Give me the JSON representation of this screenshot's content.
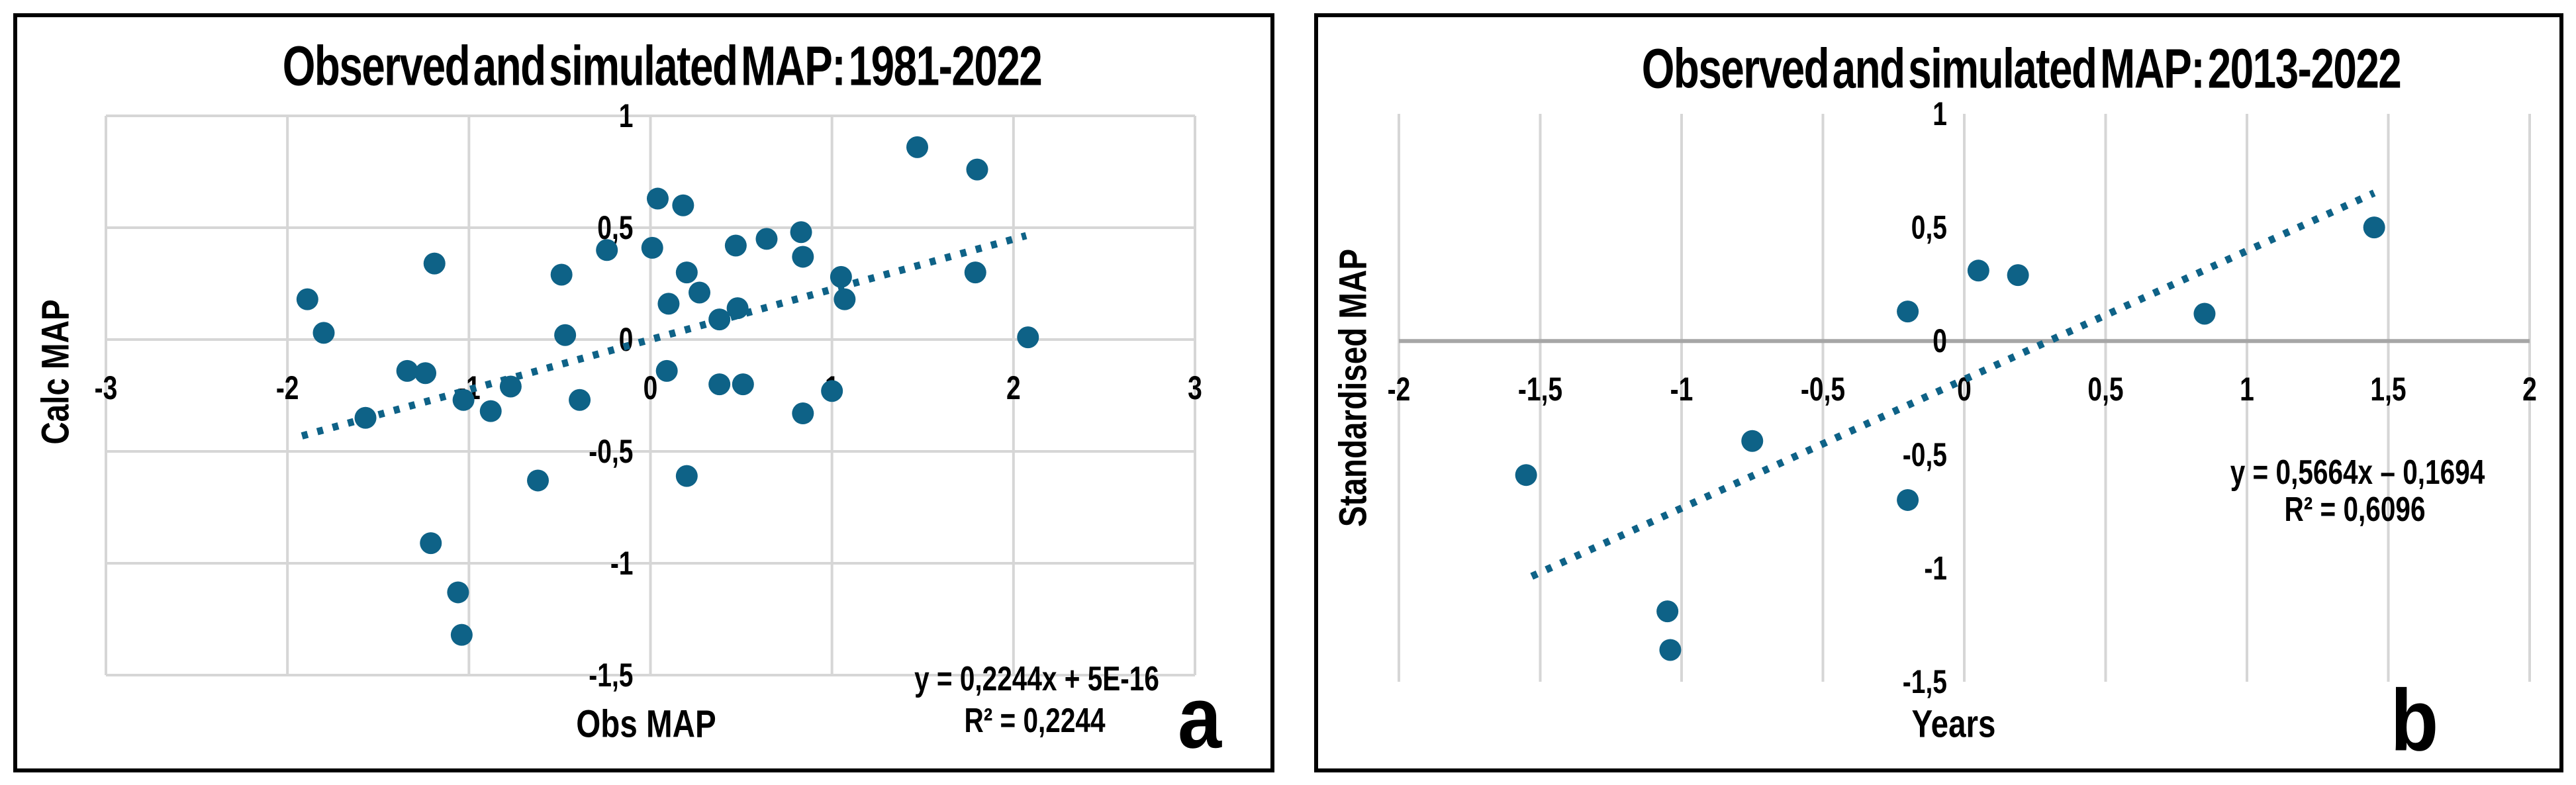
{
  "figure": {
    "background": "#FFFFFF",
    "panel_count": 2
  },
  "colors": {
    "point": "#0E6287",
    "trendline": "#0E6287",
    "gridline": "#D6D6D6",
    "zero_axis": "#A6A6A6",
    "text": "#000000",
    "panel_border": "#000000"
  },
  "chart_data": [
    {
      "id": "a",
      "type": "scatter",
      "title": "Observed and simulated MAP: 1981-2022",
      "xlabel": "Obs MAP",
      "ylabel": "Calc MAP",
      "corner_label": "a",
      "xlim": [
        -3,
        3
      ],
      "ylim": [
        -1.5,
        1
      ],
      "grid": "both",
      "zero_axis": false,
      "legend": "none",
      "x_ticks": [
        {
          "v": -3,
          "label": "-3"
        },
        {
          "v": -2,
          "label": "-2"
        },
        {
          "v": -1,
          "label": "-1"
        },
        {
          "v": 0,
          "label": "0"
        },
        {
          "v": 1,
          "label": "1"
        },
        {
          "v": 2,
          "label": "2"
        },
        {
          "v": 3,
          "label": "3"
        }
      ],
      "y_ticks": [
        {
          "v": 1,
          "label": "1"
        },
        {
          "v": 0.5,
          "label": "0,5"
        },
        {
          "v": 0,
          "label": "0"
        },
        {
          "v": -0.5,
          "label": "-0,5"
        },
        {
          "v": -1,
          "label": "-1"
        },
        {
          "v": -1.5,
          "label": "-1,5"
        }
      ],
      "points": [
        [
          -1.89,
          0.18
        ],
        [
          -1.8,
          0.03
        ],
        [
          -1.57,
          -0.35
        ],
        [
          -1.34,
          -0.14
        ],
        [
          -1.24,
          -0.15
        ],
        [
          -1.19,
          0.34
        ],
        [
          -1.21,
          -0.91
        ],
        [
          -1.06,
          -1.13
        ],
        [
          -1.04,
          -1.32
        ],
        [
          -1.03,
          -0.27
        ],
        [
          -0.88,
          -0.32
        ],
        [
          -0.77,
          -0.21
        ],
        [
          -0.62,
          -0.63
        ],
        [
          -0.49,
          0.29
        ],
        [
          -0.47,
          0.02
        ],
        [
          -0.39,
          -0.27
        ],
        [
          -0.24,
          0.4
        ],
        [
          0.01,
          0.41
        ],
        [
          0.04,
          0.63
        ],
        [
          0.18,
          0.6
        ],
        [
          0.1,
          0.16
        ],
        [
          0.2,
          0.3
        ],
        [
          0.27,
          0.21
        ],
        [
          0.09,
          -0.14
        ],
        [
          0.38,
          -0.2
        ],
        [
          0.51,
          -0.2
        ],
        [
          0.38,
          0.09
        ],
        [
          0.48,
          0.14
        ],
        [
          0.47,
          0.42
        ],
        [
          0.64,
          0.45
        ],
        [
          0.83,
          0.48
        ],
        [
          0.84,
          0.37
        ],
        [
          0.84,
          -0.33
        ],
        [
          1.0,
          -0.23
        ],
        [
          1.05,
          0.28
        ],
        [
          1.07,
          0.18
        ],
        [
          0.2,
          -0.61
        ],
        [
          1.47,
          0.86
        ],
        [
          1.8,
          0.76
        ],
        [
          1.79,
          0.3
        ],
        [
          2.08,
          0.01
        ]
      ],
      "trendline": {
        "style": "dotted",
        "slope": 0.2244,
        "intercept": 0,
        "x_start": -1.92,
        "x_end": 2.07,
        "equation": "y = 0,2244x + 5E-16",
        "r2": "R² = 0,2244"
      }
    },
    {
      "id": "b",
      "type": "scatter",
      "title": "Observed and simulated MAP: 2013-2022",
      "xlabel": "Years",
      "ylabel": "Standardised MAP",
      "corner_label": "b",
      "xlim": [
        -2,
        2
      ],
      "ylim": [
        -1.5,
        1
      ],
      "grid": "vertical",
      "zero_axis": true,
      "legend": "none",
      "x_ticks": [
        {
          "v": -2,
          "label": "-2"
        },
        {
          "v": -1.5,
          "label": "-1,5"
        },
        {
          "v": -1,
          "label": "-1"
        },
        {
          "v": -0.5,
          "label": "-0,5"
        },
        {
          "v": 0,
          "label": "0"
        },
        {
          "v": 0.5,
          "label": "0,5"
        },
        {
          "v": 1,
          "label": "1"
        },
        {
          "v": 1.5,
          "label": "1,5"
        },
        {
          "v": 2,
          "label": "2"
        }
      ],
      "y_ticks": [
        {
          "v": 1,
          "label": "1"
        },
        {
          "v": 0.5,
          "label": "0,5"
        },
        {
          "v": 0,
          "label": "0"
        },
        {
          "v": -0.5,
          "label": "-0,5"
        },
        {
          "v": -1,
          "label": "-1"
        },
        {
          "v": -1.5,
          "label": "-1,5"
        }
      ],
      "points": [
        [
          -1.55,
          -0.59
        ],
        [
          -1.05,
          -1.19
        ],
        [
          -1.04,
          -1.36
        ],
        [
          -0.75,
          -0.44
        ],
        [
          -0.2,
          -0.7
        ],
        [
          -0.2,
          0.13
        ],
        [
          0.05,
          0.31
        ],
        [
          0.19,
          0.29
        ],
        [
          0.85,
          0.12
        ],
        [
          1.45,
          0.5
        ]
      ],
      "trendline": {
        "style": "dotted",
        "slope": 0.5664,
        "intercept": -0.1694,
        "x_start": -1.53,
        "x_end": 1.45,
        "equation": "y = 0,5664x – 0,1694",
        "r2": "R² = 0,6096"
      }
    }
  ]
}
